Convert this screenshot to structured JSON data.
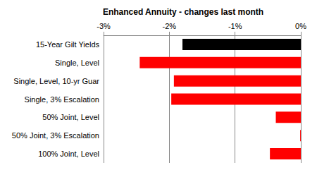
{
  "chart_data": {
    "type": "bar",
    "orientation": "horizontal",
    "title": "Enhanced Annuity - changes last month",
    "categories": [
      "15-Year Gilt Yields",
      "Single, Level",
      "Single, Level, 10-yr Guar",
      "Single, 3% Escalation",
      "50% Joint, Level",
      "50% Joint, 3% Escalation",
      "100% Joint, Level"
    ],
    "values": [
      -1.8,
      -2.45,
      -1.93,
      -1.97,
      -0.38,
      -0.01,
      -0.47
    ],
    "colors": [
      "#000000",
      "#ff0000",
      "#ff0000",
      "#ff0000",
      "#ff0000",
      "#ff0000",
      "#ff0000"
    ],
    "xlim": [
      -3,
      0
    ],
    "xticks": [
      {
        "value": -3,
        "label": "-3%"
      },
      {
        "value": -2,
        "label": "-2%"
      },
      {
        "value": -1,
        "label": "-1%"
      },
      {
        "value": 0,
        "label": "0%"
      }
    ],
    "grid": true
  }
}
